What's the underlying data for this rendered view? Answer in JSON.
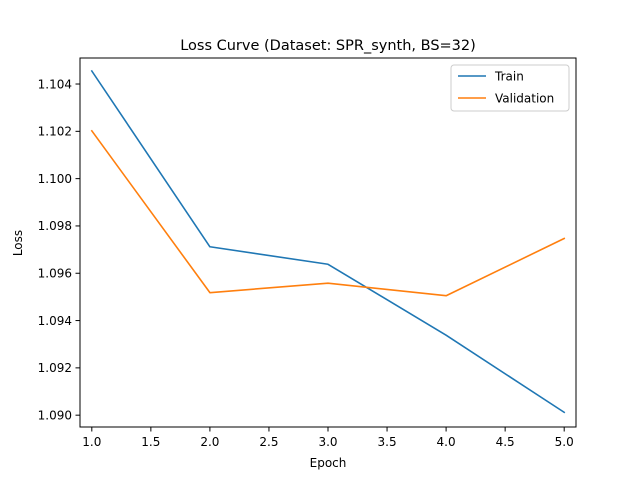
{
  "chart_data": {
    "type": "line",
    "title": "Loss Curve (Dataset: SPR_synth, BS=32)",
    "xlabel": "Epoch",
    "ylabel": "Loss",
    "xlim": [
      0.9,
      5.1
    ],
    "ylim": [
      1.0895,
      1.1051
    ],
    "xticks": [
      1.0,
      1.5,
      2.0,
      2.5,
      3.0,
      3.5,
      4.0,
      4.5,
      5.0
    ],
    "yticks": [
      1.09,
      1.092,
      1.094,
      1.096,
      1.098,
      1.1,
      1.102,
      1.104
    ],
    "x": [
      1,
      2,
      3,
      4,
      5
    ],
    "series": [
      {
        "name": "Train",
        "color": "#1f77b4",
        "values": [
          1.10455,
          1.09712,
          1.09638,
          1.09338,
          1.09012
        ]
      },
      {
        "name": "Validation",
        "color": "#ff7f0e",
        "values": [
          1.10202,
          1.09518,
          1.09558,
          1.09505,
          1.09747
        ]
      }
    ],
    "grid": false,
    "legend_position": "top-right"
  }
}
